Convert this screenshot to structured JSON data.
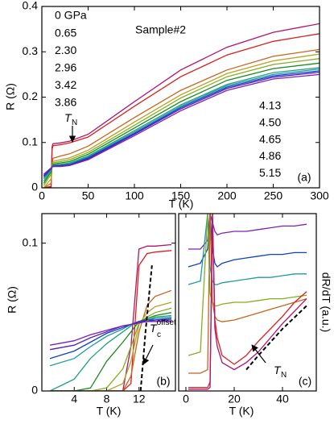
{
  "chart_data": [
    {
      "type": "line",
      "panel_label": "(a)",
      "x_label": "T (K)",
      "y_label": "R (Ω)",
      "sample_label": "Sample#2",
      "annotation": {
        "text": "T",
        "sub": "N"
      },
      "xlim": [
        0,
        300
      ],
      "ylim": [
        0,
        0.4
      ],
      "xticks": [
        0,
        50,
        100,
        150,
        200,
        250,
        300
      ],
      "yticks": [
        0,
        0.1,
        0.2,
        0.3,
        0.4
      ],
      "x": [
        2,
        10,
        11,
        12,
        20,
        30,
        50,
        100,
        150,
        200,
        250,
        300
      ],
      "series": [
        {
          "name": "0 GPa",
          "color": "#b0146e",
          "values": [
            0,
            0.002,
            0.09,
            0.097,
            0.099,
            0.103,
            0.118,
            0.19,
            0.26,
            0.31,
            0.343,
            0.362
          ]
        },
        {
          "name": "0.65",
          "color": "#d8201c",
          "values": [
            0,
            0.003,
            0.085,
            0.093,
            0.095,
            0.099,
            0.112,
            0.18,
            0.245,
            0.293,
            0.323,
            0.34
          ]
        },
        {
          "name": "2.30",
          "color": "#c8641c",
          "values": [
            0,
            0.01,
            0.05,
            0.065,
            0.07,
            0.075,
            0.092,
            0.155,
            0.215,
            0.26,
            0.29,
            0.305
          ]
        },
        {
          "name": "2.96",
          "color": "#b8a020",
          "values": [
            0,
            0.02,
            0.05,
            0.058,
            0.062,
            0.066,
            0.083,
            0.145,
            0.205,
            0.252,
            0.28,
            0.295
          ]
        },
        {
          "name": "3.42",
          "color": "#80b020",
          "values": [
            0.005,
            0.03,
            0.048,
            0.055,
            0.058,
            0.062,
            0.078,
            0.138,
            0.198,
            0.245,
            0.272,
            0.285
          ]
        },
        {
          "name": "3.86",
          "color": "#1a8a1a",
          "values": [
            0.01,
            0.035,
            0.047,
            0.052,
            0.055,
            0.058,
            0.074,
            0.132,
            0.19,
            0.237,
            0.263,
            0.275
          ]
        },
        {
          "name": "4.13",
          "color": "#20a080",
          "values": [
            0.015,
            0.038,
            0.046,
            0.05,
            0.052,
            0.055,
            0.07,
            0.126,
            0.183,
            0.228,
            0.254,
            0.265
          ]
        },
        {
          "name": "4.50",
          "color": "#2098a8",
          "values": [
            0.02,
            0.04,
            0.046,
            0.049,
            0.05,
            0.053,
            0.068,
            0.123,
            0.18,
            0.225,
            0.25,
            0.262
          ]
        },
        {
          "name": "4.65",
          "color": "#1040c0",
          "values": [
            0.024,
            0.042,
            0.046,
            0.048,
            0.049,
            0.051,
            0.066,
            0.12,
            0.177,
            0.222,
            0.247,
            0.258
          ]
        },
        {
          "name": "4.86",
          "color": "#5020c0",
          "values": [
            0.027,
            0.043,
            0.046,
            0.047,
            0.048,
            0.05,
            0.064,
            0.118,
            0.174,
            0.219,
            0.244,
            0.255
          ]
        },
        {
          "name": "5.15",
          "color": "#8020b0",
          "values": [
            0.03,
            0.044,
            0.046,
            0.047,
            0.047,
            0.049,
            0.062,
            0.115,
            0.17,
            0.215,
            0.24,
            0.25
          ]
        }
      ]
    },
    {
      "type": "line",
      "panel_label": "(b)",
      "x_label": "T (K)",
      "y_label": "R (Ω)",
      "annotation": {
        "text": "T",
        "sub": "c",
        "sup": "offset"
      },
      "xlim": [
        0,
        16.5
      ],
      "ylim": [
        0,
        0.12
      ],
      "xticks": [
        4,
        8,
        12
      ],
      "yticks": [
        0,
        0.1
      ],
      "x": [
        1,
        4,
        6,
        8,
        10,
        11,
        12,
        13,
        14,
        16
      ],
      "dashed_line": {
        "x": [
          12.2,
          12.8,
          13.6
        ],
        "y": [
          0,
          0.04,
          0.085
        ]
      },
      "series": [
        {
          "color": "#b0146e",
          "values": [
            0,
            0,
            0,
            0,
            0,
            0.03,
            0.096,
            0.098,
            0.098,
            0.099
          ]
        },
        {
          "color": "#d8201c",
          "values": [
            0,
            0,
            0,
            0,
            0,
            0.005,
            0.085,
            0.093,
            0.094,
            0.095
          ]
        },
        {
          "color": "#c8641c",
          "values": [
            0,
            0,
            0,
            0,
            0,
            0.01,
            0.04,
            0.058,
            0.064,
            0.068
          ]
        },
        {
          "color": "#b8a020",
          "values": [
            0,
            0,
            0,
            0,
            0.005,
            0.02,
            0.045,
            0.053,
            0.057,
            0.06
          ]
        },
        {
          "color": "#80b020",
          "values": [
            0,
            0,
            0,
            0.002,
            0.015,
            0.03,
            0.046,
            0.05,
            0.053,
            0.056
          ]
        },
        {
          "color": "#1a8a1a",
          "values": [
            0,
            0,
            0.002,
            0.02,
            0.033,
            0.04,
            0.047,
            0.049,
            0.051,
            0.053
          ]
        },
        {
          "color": "#20a080",
          "values": [
            0,
            0.008,
            0.022,
            0.032,
            0.04,
            0.044,
            0.047,
            0.048,
            0.05,
            0.051
          ]
        },
        {
          "color": "#2098a8",
          "values": [
            0.017,
            0.022,
            0.03,
            0.037,
            0.042,
            0.045,
            0.047,
            0.048,
            0.049,
            0.05
          ]
        },
        {
          "color": "#1040c0",
          "values": [
            0.022,
            0.027,
            0.033,
            0.039,
            0.043,
            0.045,
            0.047,
            0.048,
            0.048,
            0.049
          ]
        },
        {
          "color": "#5020c0",
          "values": [
            0.028,
            0.031,
            0.036,
            0.04,
            0.044,
            0.045,
            0.047,
            0.047,
            0.048,
            0.048
          ]
        },
        {
          "color": "#8020b0",
          "values": [
            0.031,
            0.034,
            0.038,
            0.041,
            0.044,
            0.045,
            0.046,
            0.047,
            0.047,
            0.047
          ]
        }
      ]
    },
    {
      "type": "line",
      "panel_label": "(c)",
      "x_label": "T (K)",
      "y_label": "dR/dT (a.u.)",
      "annotation": {
        "text": "T",
        "sub": "N"
      },
      "xlim": [
        -3,
        54
      ],
      "ylim": [
        0,
        1
      ],
      "xticks": [
        0,
        20,
        40
      ],
      "x": [
        1,
        6,
        9,
        10,
        11,
        12,
        13,
        15,
        20,
        25,
        30,
        35,
        40,
        45,
        50
      ],
      "dashed_line": {
        "x": [
          25,
          30,
          40,
          50
        ],
        "y": [
          0.12,
          0.2,
          0.35,
          0.48
        ]
      },
      "series": [
        {
          "color": "#8020b0",
          "values": [
            0.8,
            0.8,
            0.85,
            1,
            0.95,
            0.9,
            0.88,
            0.89,
            0.9,
            0.9,
            0.91,
            0.92,
            0.93,
            0.93,
            0.94
          ]
        },
        {
          "color": "#1040c0",
          "values": [
            0.7,
            0.72,
            0.8,
            1,
            0.8,
            0.72,
            0.7,
            0.72,
            0.74,
            0.75,
            0.76,
            0.77,
            0.77,
            0.78,
            0.78
          ]
        },
        {
          "color": "#2098a8",
          "values": [
            0.6,
            0.62,
            1,
            0.7,
            0.62,
            0.6,
            0.6,
            0.61,
            0.62,
            0.63,
            0.64,
            0.64,
            0.65,
            0.66,
            0.66
          ]
        },
        {
          "color": "#80b020",
          "values": [
            0.2,
            0.22,
            1,
            0.55,
            0.5,
            0.48,
            0.48,
            0.49,
            0.5,
            0.5,
            0.51,
            0.52,
            0.52,
            0.53,
            0.54
          ]
        },
        {
          "color": "#c8641c",
          "values": [
            0.1,
            0.1,
            0.12,
            1,
            0.5,
            0.42,
            0.4,
            0.39,
            0.4,
            0.42,
            0.44,
            0.46,
            0.48,
            0.5,
            0.52
          ]
        },
        {
          "color": "#d8201c",
          "values": [
            0.02,
            0.02,
            0.02,
            0.05,
            1,
            0.4,
            0.3,
            0.2,
            0.15,
            0.2,
            0.28,
            0.35,
            0.42,
            0.5,
            0.56
          ]
        },
        {
          "color": "#b0146e",
          "values": [
            0.01,
            0.01,
            0.01,
            0.02,
            1,
            0.35,
            0.25,
            0.16,
            0.12,
            0.16,
            0.22,
            0.3,
            0.38,
            0.45,
            0.52
          ]
        }
      ]
    }
  ]
}
